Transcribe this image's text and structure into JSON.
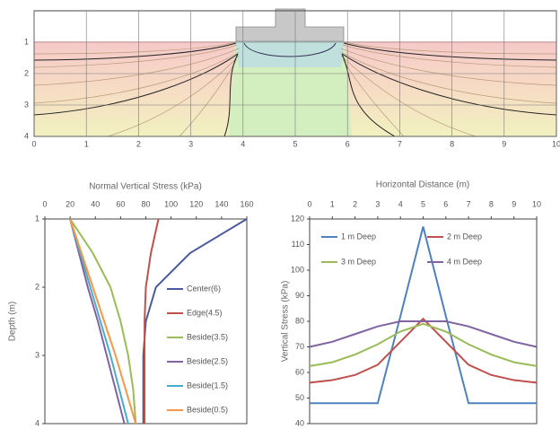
{
  "chart_data": [
    {
      "type": "contour",
      "xlim": [
        0,
        10
      ],
      "xticks": [
        0,
        1,
        2,
        3,
        4,
        5,
        6,
        7,
        8,
        9,
        10
      ],
      "ylim": [
        4,
        0
      ],
      "yticks": [
        1,
        2,
        3,
        4
      ],
      "grid": true
    },
    {
      "type": "line",
      "title": "Normal Vertical Stress (kPa)",
      "ylabel": "Depth (m)",
      "y": [
        1,
        1.5,
        2,
        2.5,
        3,
        3.5,
        4
      ],
      "xlim": [
        0,
        160
      ],
      "xticks": [
        0,
        20,
        40,
        60,
        80,
        100,
        120,
        140,
        160
      ],
      "ylim": [
        4,
        1
      ],
      "yticks": [
        1,
        2,
        3,
        4
      ],
      "grid": false,
      "series": [
        {
          "name": "Center(6)",
          "color": "#4a5a9c",
          "values": [
            160,
            115,
            88,
            80,
            78,
            78,
            78
          ]
        },
        {
          "name": "Edge(4.5)",
          "color": "#c0504d",
          "values": [
            90,
            84,
            80,
            79,
            79,
            79,
            79
          ]
        },
        {
          "name": "Beside(3.5)",
          "color": "#9bbb59",
          "values": [
            20,
            38,
            52,
            60,
            66,
            70,
            72
          ]
        },
        {
          "name": "Beside(2.5)",
          "color": "#8064a2",
          "values": [
            20,
            27,
            34,
            42,
            49,
            56,
            63
          ]
        },
        {
          "name": "Beside(1.5)",
          "color": "#4bacc6",
          "values": [
            20,
            28,
            36,
            44,
            52,
            59,
            66
          ]
        },
        {
          "name": "Beside(0.5)",
          "color": "#f79646",
          "values": [
            20,
            29,
            38,
            47,
            56,
            64,
            72
          ]
        }
      ]
    },
    {
      "type": "line",
      "title": "Horizontal Distance (m)",
      "ylabel": "Vertical Stress (kPa)",
      "x": [
        0,
        1,
        2,
        3,
        4,
        5,
        6,
        7,
        8,
        9,
        10
      ],
      "xlim": [
        0,
        10
      ],
      "xticks": [
        0,
        1,
        2,
        3,
        4,
        5,
        6,
        7,
        8,
        9,
        10
      ],
      "ylim": [
        40,
        120
      ],
      "yticks": [
        40,
        50,
        60,
        70,
        80,
        90,
        100,
        110,
        120
      ],
      "grid": false,
      "series": [
        {
          "name": "1 m Deep",
          "color": "#4f81bd",
          "values": [
            48,
            48,
            48,
            48,
            82,
            117,
            82,
            48,
            48,
            48,
            48
          ]
        },
        {
          "name": "2 m Deep",
          "color": "#c0504d",
          "values": [
            56,
            57,
            59,
            63,
            72,
            81,
            72,
            63,
            59,
            57,
            56
          ]
        },
        {
          "name": "3 m Deep",
          "color": "#9bbb59",
          "values": [
            62.5,
            64,
            67,
            71,
            76,
            79,
            76,
            71,
            67,
            64,
            62.5
          ]
        },
        {
          "name": "4 m Deep",
          "color": "#8064a2",
          "values": [
            70,
            72,
            75,
            78,
            80,
            80,
            80,
            78,
            75,
            72,
            70
          ]
        }
      ]
    }
  ]
}
